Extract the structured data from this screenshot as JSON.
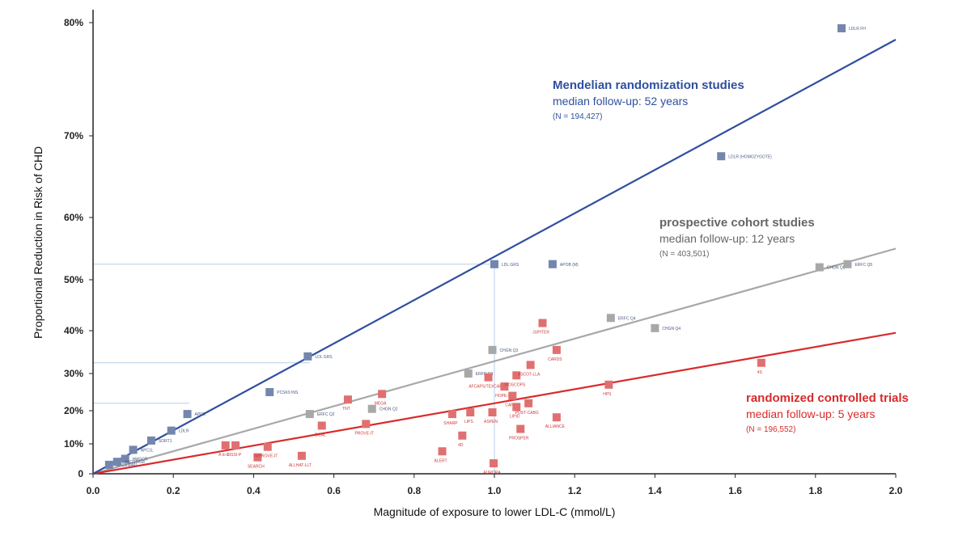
{
  "chart_data": {
    "type": "scatter",
    "xlabel": "Magnitude of exposure to lower LDL-C (mmol/L)",
    "ylabel": "Proportional Reduction in Risk of CHD",
    "xlim": [
      0,
      2.0
    ],
    "x_ticks": [
      "0.0",
      "0.2",
      "0.4",
      "0.6",
      "0.8",
      "1.0",
      "1.2",
      "1.4",
      "1.6",
      "1.8",
      "2.0"
    ],
    "y_ticks": [
      {
        "value": 0,
        "label": "0"
      },
      {
        "value": 10,
        "label": "10%"
      },
      {
        "value": 20,
        "label": "20%"
      },
      {
        "value": 30,
        "label": "30%"
      },
      {
        "value": 40,
        "label": "40%"
      },
      {
        "value": 50,
        "label": "50%"
      },
      {
        "value": 60,
        "label": "60%"
      },
      {
        "value": 70,
        "label": "70%"
      },
      {
        "value": 80,
        "label": "80%"
      }
    ],
    "reference_lines": [
      {
        "x": 1.0,
        "y": 52.5
      },
      {
        "x": 0.54,
        "y": 32.5
      },
      {
        "x": 0.24,
        "y": 22.0
      }
    ],
    "series": [
      {
        "name": "Mendelian randomization studies",
        "color": "#2f4f9e",
        "marker_color": "#7486ad",
        "fit_end": {
          "x": 2.0,
          "y": 78.5
        },
        "annotation": {
          "title": "Mendelian randomization studies",
          "followup": "median follow-up: 52 years",
          "n": "(N = 194,427)"
        },
        "points": [
          {
            "x": 0.04,
            "y": 3,
            "label": "SPC9 R46L"
          },
          {
            "x": 0.08,
            "y": 5,
            "label": "HMGCR"
          },
          {
            "x": 0.06,
            "y": 4,
            "label": "ABCG5/G8"
          },
          {
            "x": 0.1,
            "y": 8,
            "label": "NPC1L"
          },
          {
            "x": 0.145,
            "y": 11,
            "label": "SORT1"
          },
          {
            "x": 0.195,
            "y": 14,
            "label": "LDLR"
          },
          {
            "x": 0.235,
            "y": 19,
            "label": "APOE"
          },
          {
            "x": 0.44,
            "y": 25,
            "label": "PCSK9 INS"
          },
          {
            "x": 0.535,
            "y": 34,
            "label": "LDL GRS"
          },
          {
            "x": 1.0,
            "y": 52.5,
            "label": "LDL GRS"
          },
          {
            "x": 1.145,
            "y": 52.5,
            "label": "APOB (M)"
          },
          {
            "x": 1.565,
            "y": 67.5,
            "label": "LDLR (HOMOZYGOTE)"
          },
          {
            "x": 1.865,
            "y": 79.5,
            "label": "LDLR FH"
          }
        ]
      },
      {
        "name": "prospective cohort studies",
        "color": "#a8a8a8",
        "marker_color": "#a8a8a8",
        "fit_end": {
          "x": 2.0,
          "y": 55
        },
        "annotation": {
          "title": "prospective cohort studies",
          "followup": "median follow-up: 12 years",
          "n": "(N = 403,501)"
        },
        "points": [
          {
            "x": 0.54,
            "y": 19,
            "label": "ERFC Q2"
          },
          {
            "x": 0.695,
            "y": 20.5,
            "label": "CHGN Q2"
          },
          {
            "x": 0.935,
            "y": 30,
            "label": "ERFC Q3"
          },
          {
            "x": 0.995,
            "y": 35.5,
            "label": "CHGN Q3"
          },
          {
            "x": 1.29,
            "y": 42.5,
            "label": "ERFC Q4"
          },
          {
            "x": 1.4,
            "y": 40.5,
            "label": "CHGN Q4"
          },
          {
            "x": 1.81,
            "y": 52,
            "label": "CHGN Q5"
          },
          {
            "x": 1.88,
            "y": 52.5,
            "label": "ERFC Q5"
          }
        ]
      },
      {
        "name": "randomized controlled trials",
        "color": "#d92b2b",
        "marker_color": "#e07070",
        "fit_end": {
          "x": 2.0,
          "y": 39.5
        },
        "annotation": {
          "title": "randomized controlled trials",
          "followup": "median follow-up: 5 years",
          "n": "(N = 196,552)"
        },
        "points": [
          {
            "x": 0.33,
            "y": 9.5,
            "label": "A to Z"
          },
          {
            "x": 0.355,
            "y": 9.5,
            "label": "GISSI-P"
          },
          {
            "x": 0.41,
            "y": 5.5,
            "label": "SEARCH"
          },
          {
            "x": 0.435,
            "y": 9,
            "label": "IMPROVE-IT"
          },
          {
            "x": 0.52,
            "y": 6,
            "label": "ALLHAT-LLT"
          },
          {
            "x": 0.57,
            "y": 15.5,
            "label": "IDEAL"
          },
          {
            "x": 0.635,
            "y": 23,
            "label": "TNT"
          },
          {
            "x": 0.68,
            "y": 16,
            "label": "PROVE-IT"
          },
          {
            "x": 0.72,
            "y": 24.5,
            "label": "MEGA"
          },
          {
            "x": 0.87,
            "y": 7.5,
            "label": "ALERT"
          },
          {
            "x": 0.895,
            "y": 19,
            "label": "SHARP"
          },
          {
            "x": 0.92,
            "y": 12.5,
            "label": "4D"
          },
          {
            "x": 0.94,
            "y": 19.5,
            "label": "LIPS"
          },
          {
            "x": 0.985,
            "y": 29,
            "label": "AFCAPS/TEXCAPS"
          },
          {
            "x": 0.995,
            "y": 19.5,
            "label": "ASPEN"
          },
          {
            "x": 0.998,
            "y": 3.5,
            "label": "AURORA"
          },
          {
            "x": 1.025,
            "y": 26.5,
            "label": "HOPE-3"
          },
          {
            "x": 1.045,
            "y": 24,
            "label": "CARE"
          },
          {
            "x": 1.055,
            "y": 29.5,
            "label": "WOSCOPS"
          },
          {
            "x": 1.055,
            "y": 21,
            "label": "LIPID"
          },
          {
            "x": 1.065,
            "y": 14.5,
            "label": "PROSPER"
          },
          {
            "x": 1.085,
            "y": 22,
            "label": "POST-CABG"
          },
          {
            "x": 1.09,
            "y": 32,
            "label": "ASCOT-LLA"
          },
          {
            "x": 1.12,
            "y": 41.5,
            "label": "JUPITER"
          },
          {
            "x": 1.155,
            "y": 35.5,
            "label": "CARDS"
          },
          {
            "x": 1.155,
            "y": 18,
            "label": "ALLIANCE"
          },
          {
            "x": 1.285,
            "y": 27,
            "label": "HPS"
          },
          {
            "x": 1.665,
            "y": 32.5,
            "label": "4S"
          }
        ]
      }
    ]
  }
}
